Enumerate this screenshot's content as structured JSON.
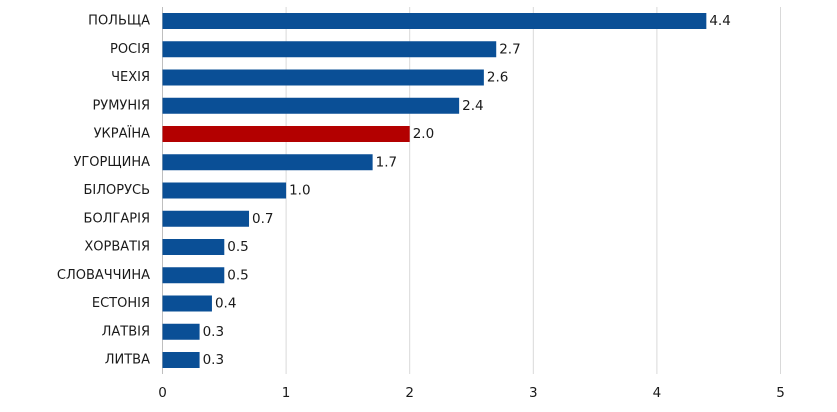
{
  "chart_data": {
    "type": "bar",
    "orientation": "horizontal",
    "categories": [
      "ПОЛЬЩА",
      "РОСІЯ",
      "ЧЕХІЯ",
      "РУМУНІЯ",
      "УКРАЇНА",
      "УГОРЩИНА",
      "БІЛОРУСЬ",
      "БОЛГАРІЯ",
      "ХОРВАТІЯ",
      "СЛОВАЧЧИНА",
      "ЕСТОНІЯ",
      "ЛАТВІЯ",
      "ЛИТВА"
    ],
    "values": [
      4.4,
      2.7,
      2.6,
      2.4,
      2.0,
      1.7,
      1.0,
      0.7,
      0.5,
      0.5,
      0.4,
      0.3,
      0.3
    ],
    "value_labels": [
      "4.4",
      "2.7",
      "2.6",
      "2.4",
      "2.0",
      "1.7",
      "1.0",
      "0.7",
      "0.5",
      "0.5",
      "0.4",
      "0.3",
      "0.3"
    ],
    "highlight_category": "УКРАЇНА",
    "xlim": [
      0,
      5
    ],
    "xticks": [
      0,
      1,
      2,
      3,
      4,
      5
    ],
    "xtick_labels": [
      "0",
      "1",
      "2",
      "3",
      "4",
      "5"
    ],
    "grid": true,
    "colors": {
      "default": "#0a4f96",
      "highlight": "#b30000"
    },
    "title": "",
    "xlabel": "",
    "ylabel": ""
  }
}
